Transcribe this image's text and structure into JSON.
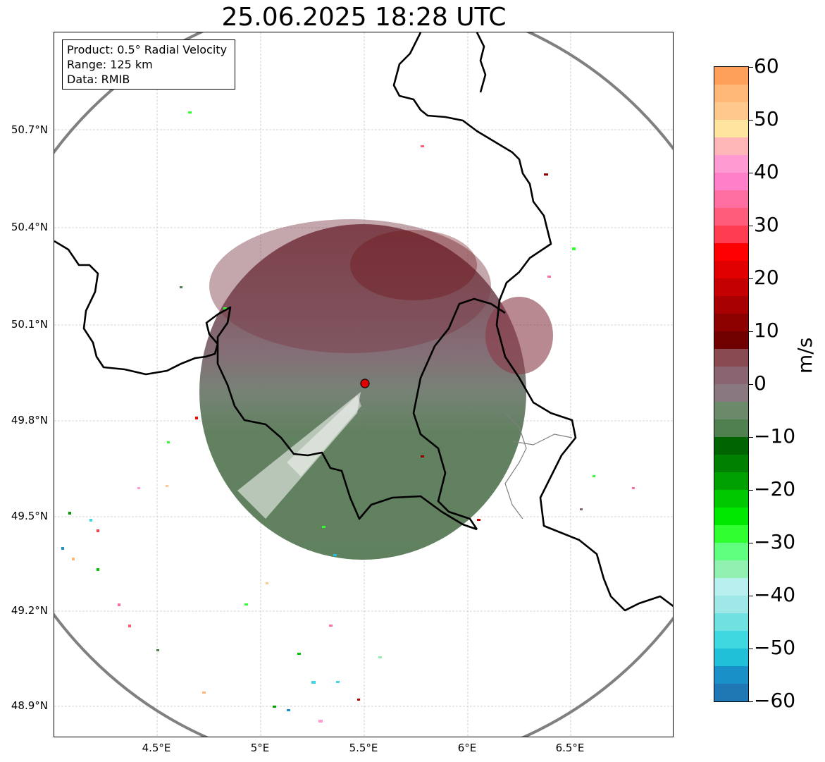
{
  "title": "25.06.2025 18:28 UTC",
  "info_box": {
    "product": "Product: 0.5° Radial Velocity",
    "range": "Range: 125 km",
    "data": "Data: RMIB"
  },
  "latitude_labels": [
    "50.7°N",
    "50.4°N",
    "50.1°N",
    "49.8°N",
    "49.5°N",
    "49.2°N",
    "48.9°N"
  ],
  "longitude_labels": [
    "4.5°E",
    "5°E",
    "5.5°E",
    "6°E",
    "6.5°E"
  ],
  "colorbar": {
    "unit": "m/s",
    "tick_labels": [
      "60",
      "50",
      "40",
      "30",
      "20",
      "10",
      "0",
      "−10",
      "−20",
      "−30",
      "−40",
      "−50",
      "−60"
    ],
    "range": [
      -60,
      60
    ],
    "colors": [
      "#ffa05a",
      "#ffb878",
      "#ffc98e",
      "#ffe4a0",
      "#ffb6b6",
      "#ff9ad2",
      "#ff80c8",
      "#ff6ea0",
      "#ff5c7c",
      "#ff3c50",
      "#ff0000",
      "#e00000",
      "#c40000",
      "#a80000",
      "#8c0000",
      "#700000",
      "#8a4a52",
      "#8a6470",
      "#8a7880",
      "#6a8a6a",
      "#508050",
      "#006400",
      "#008000",
      "#00a000",
      "#00c800",
      "#00e800",
      "#30ff30",
      "#60ff80",
      "#90f0b0",
      "#b8f0f0",
      "#a0e8e8",
      "#70e0e0",
      "#40d8e0",
      "#20c0d8",
      "#1a90c8",
      "#1f77b4"
    ]
  },
  "radar": {
    "site_marker_color": "#e00000",
    "range_ring_color": "#808080",
    "border_color": "#000000"
  }
}
